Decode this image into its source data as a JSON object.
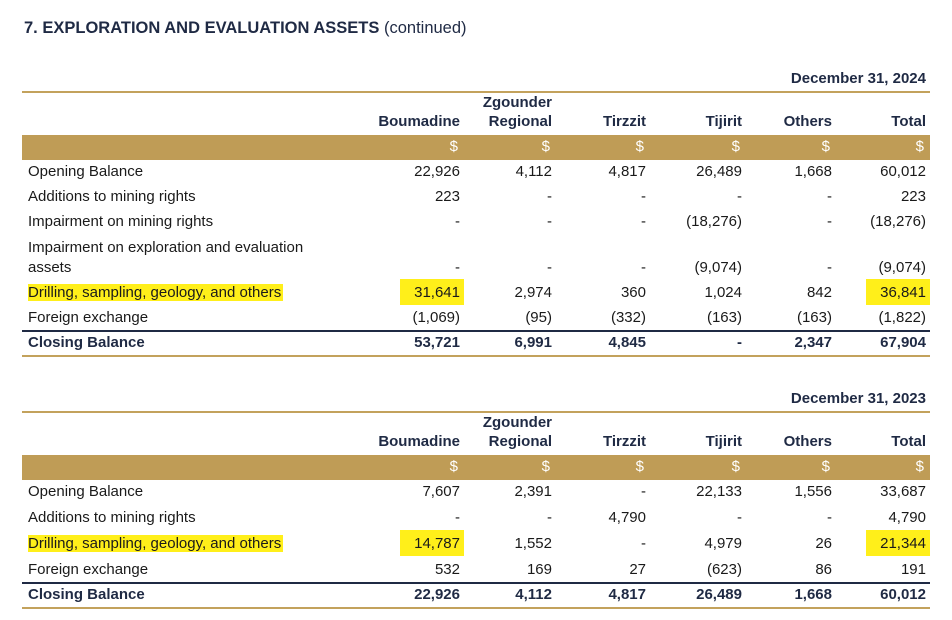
{
  "title": {
    "main": "7.  EXPLORATION AND EVALUATION ASSETS",
    "suffix": "(continued)"
  },
  "tables": [
    {
      "date": "December 31, 2024",
      "columns": [
        {
          "line1": "",
          "line2": "Boumadine"
        },
        {
          "line1": "Zgounder",
          "line2": "Regional"
        },
        {
          "line1": "",
          "line2": "Tirzzit"
        },
        {
          "line1": "",
          "line2": "Tijirit"
        },
        {
          "line1": "",
          "line2": "Others"
        },
        {
          "line1": "",
          "line2": "Total"
        }
      ],
      "currency": "$",
      "rows": [
        {
          "label": "Opening Balance",
          "values": [
            "22,926",
            "4,112",
            "4,817",
            "26,489",
            "1,668",
            "60,012"
          ]
        },
        {
          "label": "Additions to mining rights",
          "values": [
            "223",
            "-",
            "-",
            "-",
            "-",
            "223"
          ]
        },
        {
          "label": "Impairment on mining rights",
          "values": [
            "-",
            "-",
            "-",
            "(18,276)",
            "-",
            "(18,276)"
          ]
        },
        {
          "label": "Impairment on exploration and evaluation",
          "label2": "assets",
          "values": [
            "-",
            "-",
            "-",
            "(9,074)",
            "-",
            "(9,074)"
          ]
        },
        {
          "label": "Drilling, sampling, geology, and others",
          "highlight": true,
          "values": [
            "31,641",
            "2,974",
            "360",
            "1,024",
            "842",
            "36,841"
          ]
        },
        {
          "label": "Foreign exchange",
          "values": [
            "(1,069)",
            "(95)",
            "(332)",
            "(163)",
            "(163)",
            "(1,822)"
          ]
        },
        {
          "label": "Closing Balance",
          "closing": true,
          "values": [
            "53,721",
            "6,991",
            "4,845",
            "-",
            "2,347",
            "67,904"
          ]
        }
      ]
    },
    {
      "date": "December 31, 2023",
      "columns": [
        {
          "line1": "",
          "line2": "Boumadine"
        },
        {
          "line1": "Zgounder",
          "line2": "Regional"
        },
        {
          "line1": "",
          "line2": "Tirzzit"
        },
        {
          "line1": "",
          "line2": "Tijirit"
        },
        {
          "line1": "",
          "line2": "Others"
        },
        {
          "line1": "",
          "line2": "Total"
        }
      ],
      "currency": "$",
      "rows": [
        {
          "label": "Opening Balance",
          "values": [
            "7,607",
            "2,391",
            "-",
            "22,133",
            "1,556",
            "33,687"
          ]
        },
        {
          "label": "Additions to mining rights",
          "values": [
            "-",
            "-",
            "4,790",
            "-",
            "-",
            "4,790"
          ]
        },
        {
          "label": "Drilling, sampling, geology, and others",
          "highlight": true,
          "values": [
            "14,787",
            "1,552",
            "-",
            "4,979",
            "26",
            "21,344"
          ]
        },
        {
          "label": "Foreign exchange",
          "values": [
            "532",
            "169",
            "27",
            "(623)",
            "86",
            "191"
          ]
        },
        {
          "label": "Closing Balance",
          "closing": true,
          "values": [
            "22,926",
            "4,112",
            "4,817",
            "26,489",
            "1,668",
            "60,012"
          ]
        }
      ]
    }
  ],
  "colors": {
    "gold_band": "#bf9c56",
    "gold_rule": "#c3a25c",
    "navy": "#1f2a44",
    "highlight": "#ffef1a"
  }
}
